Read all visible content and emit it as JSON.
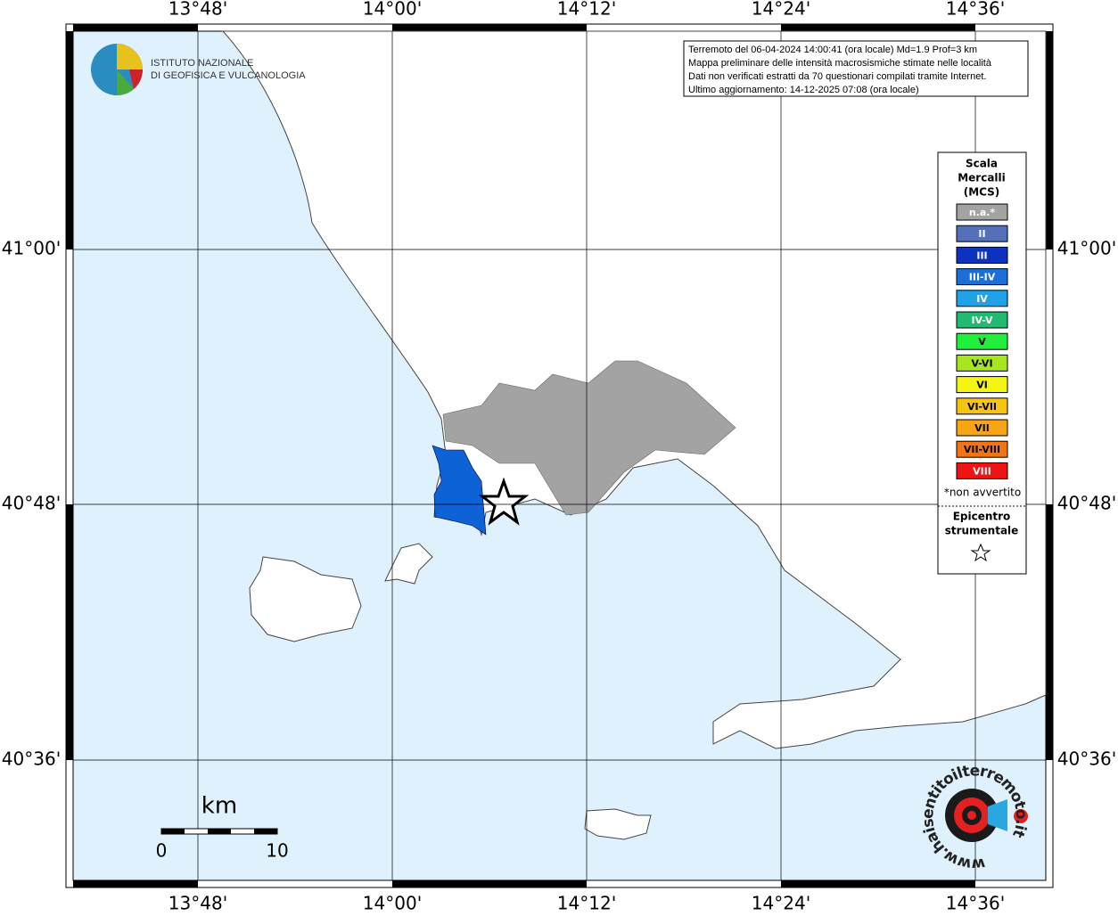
{
  "map": {
    "lon_labels": [
      "13°48'",
      "14°00'",
      "14°12'",
      "14°24'",
      "14°36'"
    ],
    "lat_labels": [
      "41°00'",
      "40°48'",
      "40°36'"
    ]
  },
  "logo": {
    "lines": [
      "ISTITUTO NAZIONALE",
      "DI GEOFISICA E VULCANOLOGIA"
    ]
  },
  "info": {
    "lines": [
      "Terremoto del 06-04-2024 14:00:41 (ora locale) Md=1.9 Prof=3 km",
      "Mappa preliminare delle intensità macrosismiche stimate nelle località",
      "Dati non verificati estratti da 70 questionari compilati tramite Internet.",
      "Ultimo aggiornamento: 14-12-2025 07:08 (ora locale)"
    ]
  },
  "legend": {
    "title": [
      "Scala",
      "Mercalli",
      "(MCS)"
    ],
    "items": [
      {
        "label": "n.a.*",
        "color": "#a3a3a3"
      },
      {
        "label": "II",
        "color": "#5470b8"
      },
      {
        "label": "III",
        "color": "#0d32c0"
      },
      {
        "label": "III-IV",
        "color": "#1c6fd6"
      },
      {
        "label": "IV",
        "color": "#1fa2e8"
      },
      {
        "label": "IV-V",
        "color": "#20ba70"
      },
      {
        "label": "V",
        "color": "#22ee3c"
      },
      {
        "label": "V-VI",
        "color": "#a6e61e"
      },
      {
        "label": "VI",
        "color": "#f5f512"
      },
      {
        "label": "VI-VII",
        "color": "#f7c414"
      },
      {
        "label": "VII",
        "color": "#f8a414"
      },
      {
        "label": "VII-VIII",
        "color": "#f27412"
      },
      {
        "label": "VIII",
        "color": "#ec1414"
      }
    ],
    "note": "*non avvertito",
    "epicenter": [
      "Epicentro",
      "strumentale"
    ]
  },
  "scale": {
    "unit": "km",
    "labels": [
      "0",
      "10"
    ]
  },
  "badge": "www.haisentitoilterremoto.it"
}
